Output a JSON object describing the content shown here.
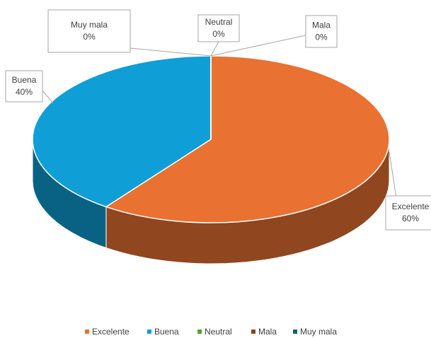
{
  "chart_data": {
    "type": "pie",
    "categories": [
      "Excelente",
      "Buena",
      "Neutral",
      "Mala",
      "Muy mala"
    ],
    "values": [
      60,
      40,
      0,
      0,
      0
    ],
    "value_labels": [
      "60%",
      "40%",
      "0%",
      "0%",
      "0%"
    ],
    "colors": [
      "#E97132",
      "#0F9ED5",
      "#4EA72E",
      "#8E4220",
      "#0B5F82"
    ],
    "legend": "bottom"
  }
}
